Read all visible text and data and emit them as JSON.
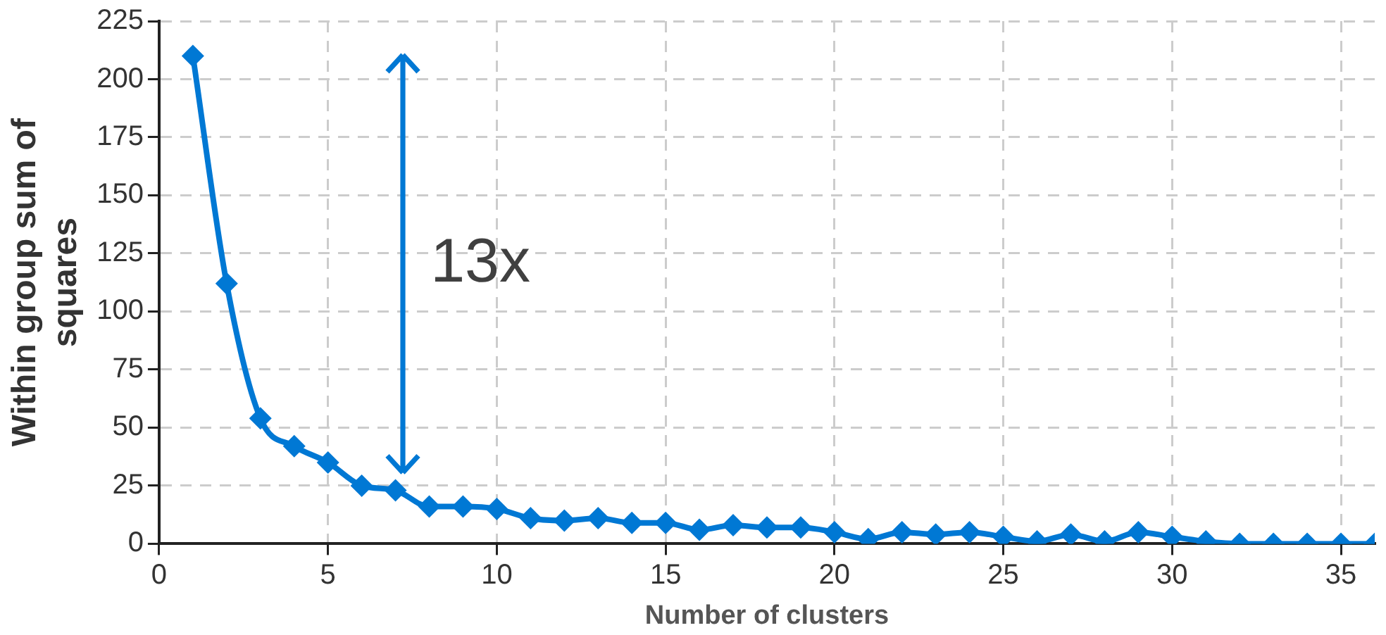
{
  "chart_data": {
    "type": "line",
    "xlabel": "Number of clusters",
    "ylabel": "Within group sum of squares",
    "x": [
      1,
      2,
      3,
      4,
      5,
      6,
      7,
      8,
      9,
      10,
      11,
      12,
      13,
      14,
      15,
      16,
      17,
      18,
      19,
      20,
      21,
      22,
      23,
      24,
      25,
      26,
      27,
      28,
      29,
      30,
      31,
      32,
      33,
      34,
      35,
      36
    ],
    "series": [
      {
        "color": "#0078d4",
        "values": [
          210,
          112,
          54,
          42,
          35,
          25,
          23,
          16,
          16,
          15,
          11,
          10,
          11,
          9,
          9,
          6,
          8,
          7,
          7,
          5,
          2,
          5,
          4,
          5,
          3,
          1,
          4,
          1,
          5,
          3,
          1,
          0,
          0,
          0,
          0,
          0
        ]
      }
    ],
    "xlim": [
      0,
      36
    ],
    "xticks": [
      0,
      5,
      10,
      15,
      20,
      25,
      30,
      35
    ],
    "ylim": [
      0,
      225
    ],
    "yticks": [
      0,
      25,
      50,
      75,
      100,
      125,
      150,
      175,
      200,
      225
    ],
    "grid": true,
    "legend": false,
    "marker": "diamond",
    "line_style": "solid",
    "annotations": [
      "13x"
    ]
  }
}
